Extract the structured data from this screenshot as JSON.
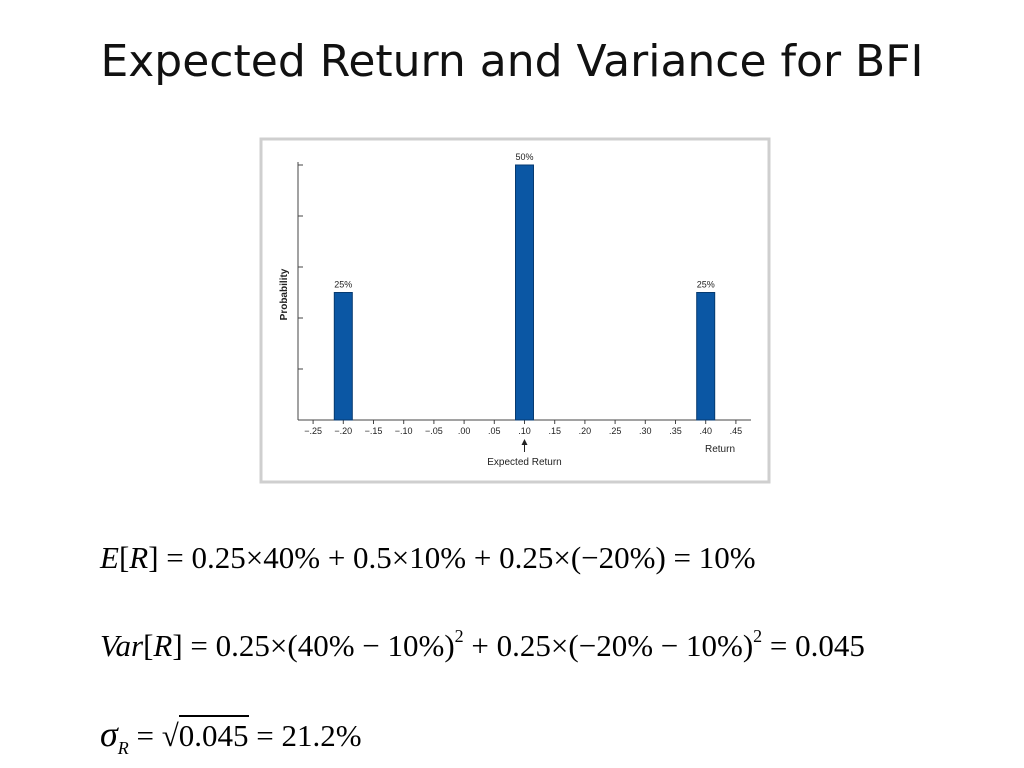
{
  "slide_title": "Expected Return and Variance  for BFI",
  "chart_data": {
    "type": "bar",
    "x": [
      -0.2,
      0.1,
      0.4
    ],
    "values": [
      25,
      50,
      25
    ],
    "value_labels": [
      "25%",
      "50%",
      "25%"
    ],
    "color": "#0b57a4",
    "xlabel": "Return",
    "ylabel": "Probability",
    "xlim": [
      -0.275,
      0.475
    ],
    "xticks": [
      {
        "value": -0.25,
        "label": "−.25"
      },
      {
        "value": -0.2,
        "label": "−.20"
      },
      {
        "value": -0.15,
        "label": "−.15"
      },
      {
        "value": -0.1,
        "label": "−.10"
      },
      {
        "value": -0.05,
        "label": "−.05"
      },
      {
        "value": 0,
        "label": ".00"
      },
      {
        "value": 0.05,
        "label": ".05"
      },
      {
        "value": 0.1,
        "label": ".10"
      },
      {
        "value": 0.15,
        "label": ".15"
      },
      {
        "value": 0.2,
        "label": ".20"
      },
      {
        "value": 0.25,
        "label": ".25"
      },
      {
        "value": 0.3,
        "label": ".30"
      },
      {
        "value": 0.35,
        "label": ".35"
      },
      {
        "value": 0.4,
        "label": ".40"
      },
      {
        "value": 0.45,
        "label": ".45"
      }
    ],
    "ylim": [
      0,
      50
    ],
    "yticks": [
      0,
      10,
      20,
      30,
      40,
      50
    ],
    "annotation": {
      "text": "Expected Return",
      "x": 0.1
    }
  },
  "equations": [
    [
      "E",
      "[",
      "R",
      "] = 0.25×40% + 0.5×10% + 0.25×(−20%) = 10%"
    ],
    [
      "Var",
      "[",
      "R",
      "] = 0.25×(40% − 10%)",
      "2",
      " + 0.25×(−20% − 10%)",
      "2",
      " = 0.045"
    ],
    [
      "σ",
      "R",
      " = ",
      "√",
      "0.045",
      " = 21.2%"
    ]
  ]
}
